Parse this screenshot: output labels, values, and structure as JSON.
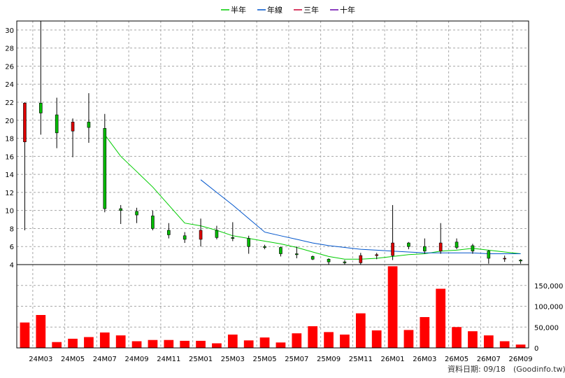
{
  "chart_data": {
    "type": "candlestick",
    "legend": [
      {
        "name": "半年",
        "color": "#00cc00"
      },
      {
        "name": "年線",
        "color": "#0055cc"
      },
      {
        "name": "三年",
        "color": "#cc0033"
      },
      {
        "name": "十年",
        "color": "#6600aa"
      }
    ],
    "price_ticks": [
      4,
      6,
      8,
      10,
      12,
      14,
      16,
      18,
      20,
      22,
      24,
      26,
      28,
      30
    ],
    "price_ylim": [
      4,
      31
    ],
    "volume_ticks": [
      "0",
      "50,000",
      "100,000",
      "150,000"
    ],
    "volume_tick_values": [
      0,
      50000,
      100000,
      150000
    ],
    "volume_ylim": [
      0,
      200000
    ],
    "x_tick_labels": [
      "24M03",
      "24M05",
      "24M07",
      "24M09",
      "24M11",
      "25M01",
      "25M03",
      "25M05",
      "25M07",
      "25M09",
      "25M11",
      "26M01",
      "26M03",
      "26M05",
      "26M07",
      "26M09"
    ],
    "months": [
      "24M02",
      "24M03",
      "24M04",
      "24M05",
      "24M06",
      "24M07",
      "24M08",
      "24M09",
      "24M10",
      "24M11",
      "24M12",
      "25M01",
      "25M02",
      "25M03",
      "25M04",
      "25M05",
      "25M06",
      "25M07",
      "25M08",
      "25M09",
      "25M10",
      "25M11",
      "25M12",
      "26M01",
      "26M02",
      "26M03",
      "26M04",
      "26M05",
      "26M06",
      "26M07",
      "26M08",
      "26M09"
    ],
    "candles": [
      {
        "open": 17.6,
        "high": 22.0,
        "low": 7.8,
        "close": 21.9
      },
      {
        "open": 21.9,
        "high": 31.0,
        "low": 18.4,
        "close": 20.8
      },
      {
        "open": 20.6,
        "high": 22.5,
        "low": 16.9,
        "close": 18.6
      },
      {
        "open": 18.8,
        "high": 20.2,
        "low": 15.9,
        "close": 19.8
      },
      {
        "open": 19.8,
        "high": 23.0,
        "low": 17.5,
        "close": 19.2
      },
      {
        "open": 19.1,
        "high": 20.7,
        "low": 9.8,
        "close": 10.2
      },
      {
        "open": 10.2,
        "high": 10.6,
        "low": 8.5,
        "close": 10.0
      },
      {
        "open": 9.9,
        "high": 10.3,
        "low": 8.6,
        "close": 9.5
      },
      {
        "open": 9.4,
        "high": 10.0,
        "low": 7.8,
        "close": 8.0
      },
      {
        "open": 7.8,
        "high": 8.6,
        "low": 6.9,
        "close": 7.3
      },
      {
        "open": 7.2,
        "high": 7.6,
        "low": 6.4,
        "close": 6.8
      },
      {
        "open": 6.8,
        "high": 9.1,
        "low": 6.0,
        "close": 7.8
      },
      {
        "open": 7.8,
        "high": 8.3,
        "low": 6.8,
        "close": 7.0
      },
      {
        "open": 7.0,
        "high": 8.7,
        "low": 6.6,
        "close": 6.9
      },
      {
        "open": 6.9,
        "high": 7.2,
        "low": 5.2,
        "close": 6.0
      },
      {
        "open": 6.0,
        "high": 6.2,
        "low": 5.7,
        "close": 5.9
      },
      {
        "open": 5.9,
        "high": 6.0,
        "low": 4.9,
        "close": 5.2
      },
      {
        "open": 5.2,
        "high": 6.0,
        "low": 4.7,
        "close": 5.1
      },
      {
        "open": 4.9,
        "high": 5.0,
        "low": 4.5,
        "close": 4.6
      },
      {
        "open": 4.6,
        "high": 4.7,
        "low": 4.0,
        "close": 4.3
      },
      {
        "open": 4.3,
        "high": 4.5,
        "low": 4.0,
        "close": 4.2
      },
      {
        "open": 4.2,
        "high": 5.3,
        "low": 4.0,
        "close": 5.0
      },
      {
        "open": 5.0,
        "high": 5.3,
        "low": 4.6,
        "close": 5.1
      },
      {
        "open": 5.0,
        "high": 10.6,
        "low": 4.5,
        "close": 6.4
      },
      {
        "open": 6.4,
        "high": 6.5,
        "low": 5.7,
        "close": 6.0
      },
      {
        "open": 6.0,
        "high": 6.9,
        "low": 5.2,
        "close": 5.5
      },
      {
        "open": 5.5,
        "high": 8.6,
        "low": 5.2,
        "close": 6.4
      },
      {
        "open": 6.5,
        "high": 6.9,
        "low": 5.7,
        "close": 5.9
      },
      {
        "open": 6.1,
        "high": 6.3,
        "low": 5.2,
        "close": 5.5
      },
      {
        "open": 5.5,
        "high": 5.6,
        "low": 4.1,
        "close": 4.7
      },
      {
        "open": 4.7,
        "high": 5.0,
        "low": 4.3,
        "close": 4.7
      },
      {
        "open": 4.5,
        "high": 4.6,
        "low": 4.1,
        "close": 4.4
      }
    ],
    "volume": [
      61000,
      79000,
      14000,
      22000,
      26000,
      37000,
      30000,
      16000,
      19000,
      19000,
      17000,
      17000,
      11000,
      32000,
      18000,
      25000,
      13000,
      35000,
      52000,
      38000,
      32000,
      83000,
      42000,
      196000,
      43000,
      74000,
      142000,
      50000,
      40000,
      30000,
      16000,
      8000
    ],
    "series": [
      {
        "name": "半年",
        "start_index": 5,
        "values": [
          18.4,
          16.0,
          14.3,
          12.6,
          10.6,
          8.6,
          8.3,
          7.8,
          7.2,
          6.9,
          6.6,
          6.3,
          5.9,
          5.4,
          4.9,
          4.6,
          4.6,
          4.7,
          4.9,
          5.1,
          5.2,
          5.5,
          5.6,
          5.8,
          5.6,
          5.4,
          5.2
        ]
      },
      {
        "name": "年線",
        "start_index": 11,
        "values": [
          13.4,
          12.0,
          10.6,
          9.1,
          7.6,
          7.2,
          6.8,
          6.4,
          6.1,
          5.9,
          5.7,
          5.6,
          5.5,
          5.4,
          5.3,
          5.3,
          5.3,
          5.3,
          5.2,
          5.2,
          5.2
        ]
      }
    ]
  },
  "footer": {
    "label": "資料日期: 09/18",
    "source": "(Goodinfo.tw)"
  }
}
